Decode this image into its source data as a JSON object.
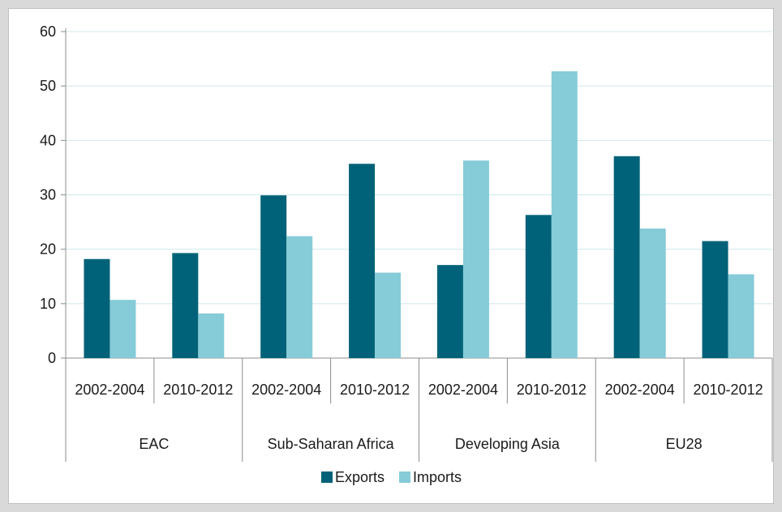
{
  "chart_data": {
    "type": "bar",
    "title": "",
    "xlabel": "",
    "ylabel": "",
    "ylim": [
      0,
      60
    ],
    "yticks": [
      0,
      10,
      20,
      30,
      40,
      50,
      60
    ],
    "grid": true,
    "legend_position": "bottom",
    "groups": [
      {
        "label": "EAC",
        "periods": [
          "2002-2004",
          "2010-2012"
        ]
      },
      {
        "label": "Sub-Saharan Africa",
        "periods": [
          "2002-2004",
          "2010-2012"
        ]
      },
      {
        "label": "Developing Asia",
        "periods": [
          "2002-2004",
          "2010-2012"
        ]
      },
      {
        "label": "EU28",
        "periods": [
          "2002-2004",
          "2010-2012"
        ]
      }
    ],
    "categories": [
      "EAC 2002-2004",
      "EAC 2010-2012",
      "Sub-Saharan Africa 2002-2004",
      "Sub-Saharan Africa 2010-2012",
      "Developing Asia 2002-2004",
      "Developing Asia 2010-2012",
      "EU28 2002-2004",
      "EU28 2010-2012"
    ],
    "series": [
      {
        "name": "Exports",
        "color": "#006278",
        "values": [
          18.2,
          19.3,
          29.9,
          35.7,
          17.1,
          26.3,
          37.1,
          21.5
        ]
      },
      {
        "name": "Imports",
        "color": "#85cbd8",
        "values": [
          10.7,
          8.2,
          22.4,
          15.7,
          36.3,
          52.7,
          23.8,
          15.4
        ]
      }
    ]
  }
}
